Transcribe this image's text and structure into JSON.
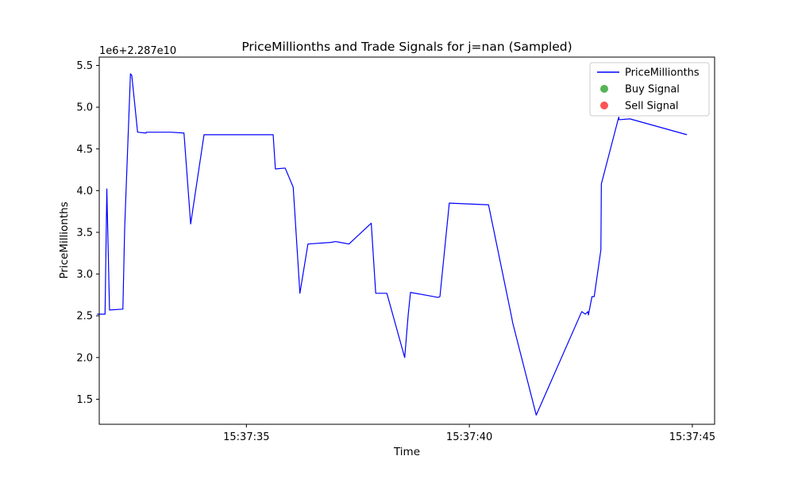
{
  "chart_data": {
    "type": "line",
    "title": "PriceMillionths and Trade Signals for j=nan (Sampled)",
    "xlabel": "Time",
    "ylabel": "PriceMillionths",
    "offset_label": "1e6+2.287e10",
    "x_unit": "seconds after 15:37:30",
    "xlim": [
      1.7,
      15.5
    ],
    "ylim": [
      1.2,
      5.6
    ],
    "x_ticks": [
      {
        "value": 5,
        "label": "15:37:35"
      },
      {
        "value": 10,
        "label": "15:37:40"
      },
      {
        "value": 15,
        "label": "15:37:45"
      }
    ],
    "y_ticks": [
      {
        "value": 1.5,
        "label": "1.5"
      },
      {
        "value": 2.0,
        "label": "2.0"
      },
      {
        "value": 2.5,
        "label": "2.5"
      },
      {
        "value": 3.0,
        "label": "3.0"
      },
      {
        "value": 3.5,
        "label": "3.5"
      },
      {
        "value": 4.0,
        "label": "4.0"
      },
      {
        "value": 4.5,
        "label": "4.5"
      },
      {
        "value": 5.0,
        "label": "5.0"
      },
      {
        "value": 5.5,
        "label": "5.5"
      }
    ],
    "legend": {
      "position": "upper right",
      "entries": [
        {
          "name": "PriceMillionths",
          "kind": "line",
          "color": "#0000ff"
        },
        {
          "name": "Buy Signal",
          "kind": "marker",
          "color": "#2ca02c"
        },
        {
          "name": "Sell Signal",
          "kind": "marker",
          "color": "#ff2b2b"
        }
      ]
    },
    "series": [
      {
        "name": "PriceMillionths",
        "color": "#0000ff",
        "points": [
          [
            1.65,
            2.52
          ],
          [
            1.83,
            2.52
          ],
          [
            1.87,
            4.02
          ],
          [
            1.93,
            2.57
          ],
          [
            2.23,
            2.58
          ],
          [
            2.27,
            3.55
          ],
          [
            2.4,
            5.4
          ],
          [
            2.43,
            5.38
          ],
          [
            2.56,
            4.7
          ],
          [
            2.75,
            4.69
          ],
          [
            2.76,
            4.7
          ],
          [
            2.9,
            4.7
          ],
          [
            3.3,
            4.7
          ],
          [
            3.6,
            4.69
          ],
          [
            3.75,
            3.6
          ],
          [
            4.05,
            4.67
          ],
          [
            5.0,
            4.67
          ],
          [
            5.6,
            4.67
          ],
          [
            5.65,
            4.26
          ],
          [
            5.87,
            4.27
          ],
          [
            6.05,
            4.04
          ],
          [
            6.2,
            2.77
          ],
          [
            6.38,
            3.36
          ],
          [
            6.9,
            3.38
          ],
          [
            7.0,
            3.39
          ],
          [
            7.1,
            3.38
          ],
          [
            7.3,
            3.36
          ],
          [
            7.8,
            3.61
          ],
          [
            7.9,
            2.77
          ],
          [
            8.15,
            2.77
          ],
          [
            8.55,
            2.0
          ],
          [
            8.63,
            2.52
          ],
          [
            8.68,
            2.78
          ],
          [
            9.1,
            2.74
          ],
          [
            9.3,
            2.72
          ],
          [
            9.34,
            2.73
          ],
          [
            9.55,
            3.85
          ],
          [
            10.43,
            3.83
          ],
          [
            10.95,
            2.48
          ],
          [
            10.97,
            2.42
          ],
          [
            11.5,
            1.31
          ],
          [
            12.52,
            2.55
          ],
          [
            12.6,
            2.52
          ],
          [
            12.66,
            2.55
          ],
          [
            12.67,
            2.51
          ],
          [
            12.75,
            2.73
          ],
          [
            12.8,
            2.73
          ],
          [
            12.95,
            3.29
          ],
          [
            12.96,
            4.08
          ],
          [
            13.35,
            4.88
          ],
          [
            13.36,
            4.85
          ],
          [
            13.6,
            4.86
          ],
          [
            14.88,
            4.67
          ]
        ]
      },
      {
        "name": "Buy Signal",
        "color": "#2ca02c",
        "points": []
      },
      {
        "name": "Sell Signal",
        "color": "#ff2b2b",
        "points": []
      }
    ]
  }
}
